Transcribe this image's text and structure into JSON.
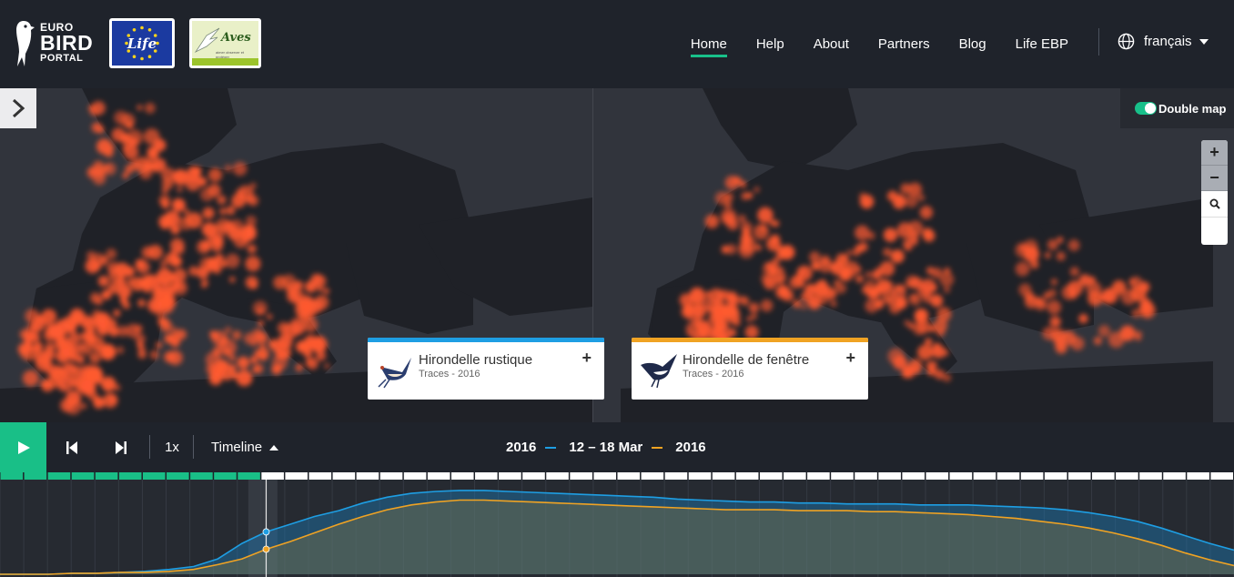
{
  "brand": {
    "line1": "EURO",
    "line2": "BIRD",
    "line3": "PORTAL",
    "life_badge": "Life",
    "aves_badge": "Aves",
    "aves_sub": "aimer observer et protéger"
  },
  "nav": {
    "items": [
      {
        "label": "Home",
        "active": true
      },
      {
        "label": "Help",
        "active": false
      },
      {
        "label": "About",
        "active": false
      },
      {
        "label": "Partners",
        "active": false
      },
      {
        "label": "Blog",
        "active": false
      },
      {
        "label": "Life EBP",
        "active": false
      }
    ],
    "language": "français"
  },
  "map_controls": {
    "double_map_label": "Double map",
    "zoom_in": "+",
    "zoom_out": "−"
  },
  "species": [
    {
      "name": "Hirondelle rustique",
      "sub": "Traces - 2016",
      "color": "#1e9ee3",
      "plus": "+"
    },
    {
      "name": "Hirondelle de fenêtre",
      "sub": "Traces - 2016",
      "color": "#f0a323",
      "plus": "+"
    }
  ],
  "controls": {
    "speed": "1x",
    "timeline_label": "Timeline",
    "year_left": "2016",
    "week": "12 – 18 Mar",
    "year_right": "2016",
    "color_left": "#1e9ee3",
    "color_right": "#f0a323",
    "accent": "#19bf87"
  },
  "timeline": {
    "total_weeks": 52,
    "current_week": 11,
    "series": [
      {
        "name": "Hirondelle rustique",
        "color": "#1e9ee3",
        "values": [
          0.0,
          0.0,
          0.0,
          0.01,
          0.01,
          0.02,
          0.03,
          0.05,
          0.08,
          0.16,
          0.32,
          0.44,
          0.52,
          0.6,
          0.66,
          0.74,
          0.8,
          0.84,
          0.86,
          0.87,
          0.87,
          0.86,
          0.85,
          0.84,
          0.83,
          0.82,
          0.81,
          0.8,
          0.78,
          0.77,
          0.76,
          0.75,
          0.75,
          0.74,
          0.74,
          0.73,
          0.73,
          0.73,
          0.72,
          0.72,
          0.72,
          0.71,
          0.7,
          0.69,
          0.67,
          0.64,
          0.6,
          0.55,
          0.48,
          0.4,
          0.32,
          0.25
        ]
      },
      {
        "name": "Hirondelle de fenêtre",
        "color": "#f0a323",
        "values": [
          0.0,
          0.0,
          0.0,
          0.01,
          0.01,
          0.02,
          0.02,
          0.03,
          0.05,
          0.1,
          0.16,
          0.26,
          0.34,
          0.43,
          0.52,
          0.6,
          0.67,
          0.72,
          0.75,
          0.77,
          0.77,
          0.76,
          0.75,
          0.74,
          0.73,
          0.72,
          0.71,
          0.7,
          0.69,
          0.68,
          0.67,
          0.67,
          0.67,
          0.66,
          0.66,
          0.66,
          0.65,
          0.65,
          0.64,
          0.63,
          0.62,
          0.6,
          0.58,
          0.55,
          0.52,
          0.48,
          0.43,
          0.37,
          0.3,
          0.22,
          0.15,
          0.09
        ]
      }
    ]
  }
}
